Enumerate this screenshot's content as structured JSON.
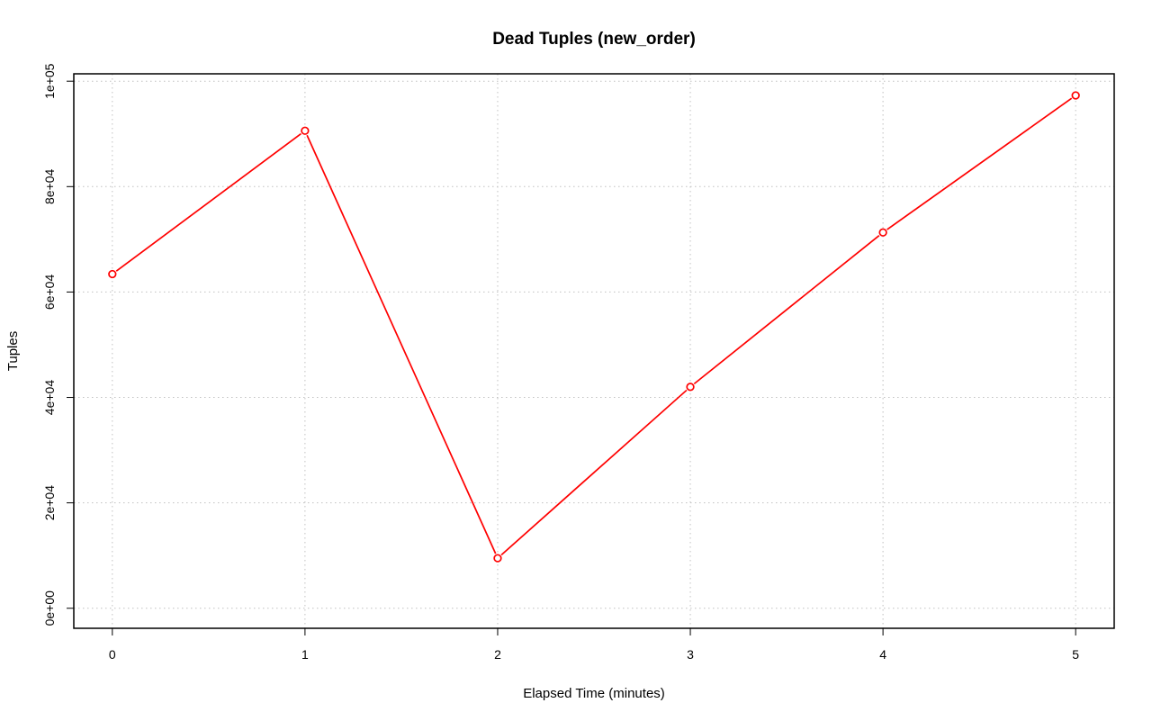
{
  "chart_data": {
    "type": "line",
    "title": "Dead Tuples (new_order)",
    "xlabel": "Elapsed Time (minutes)",
    "ylabel": "Tuples",
    "x": [
      0,
      1,
      2,
      3,
      4,
      5
    ],
    "x_ticks": [
      "0",
      "1",
      "2",
      "3",
      "4",
      "5"
    ],
    "y_ticks": [
      {
        "value": 0,
        "label": "0e+00"
      },
      {
        "value": 20000,
        "label": "2e+04"
      },
      {
        "value": 40000,
        "label": "4e+04"
      },
      {
        "value": 60000,
        "label": "6e+04"
      },
      {
        "value": 80000,
        "label": "8e+04"
      },
      {
        "value": 100000,
        "label": "1e+05"
      }
    ],
    "series": [
      {
        "values": [
          63400,
          90600,
          9500,
          42000,
          71300,
          97300
        ],
        "color": "#ff0000",
        "marker": "open-circle"
      }
    ],
    "xlim": [
      -0.2,
      5.2
    ],
    "ylim": [
      -3800,
      101400
    ],
    "grid": true,
    "grid_style": "dotted",
    "grid_color": "#c0c0c0"
  }
}
